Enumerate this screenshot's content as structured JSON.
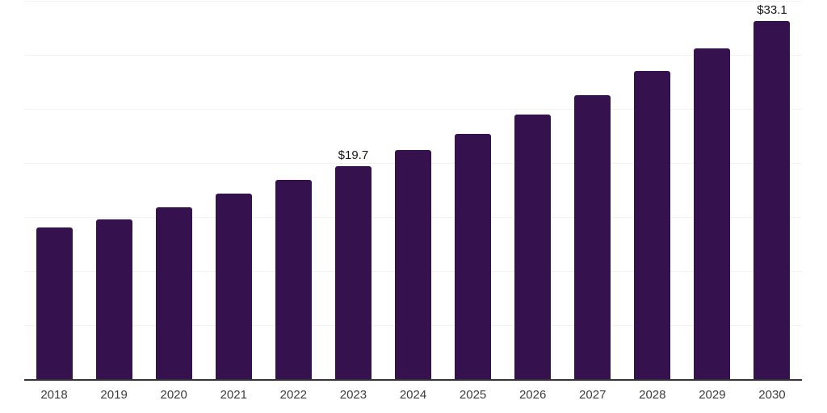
{
  "chart_data": {
    "type": "bar",
    "title": "",
    "xlabel": "",
    "ylabel": "",
    "categories": [
      "2018",
      "2019",
      "2020",
      "2021",
      "2022",
      "2023",
      "2024",
      "2025",
      "2026",
      "2027",
      "2028",
      "2029",
      "2030"
    ],
    "values": [
      14.0,
      14.8,
      15.9,
      17.2,
      18.4,
      19.7,
      21.2,
      22.7,
      24.5,
      26.3,
      28.5,
      30.6,
      33.1
    ],
    "data_labels": [
      "",
      "",
      "",
      "",
      "",
      "$19.7",
      "",
      "",
      "",
      "",
      "",
      "",
      "$33.1"
    ],
    "ylim": [
      0,
      35
    ],
    "grid_step": 5,
    "grid": "horizontal",
    "legend": "none",
    "colors": {
      "bar": "#35124E",
      "gridline": "#F3F3F3",
      "axis_line": "#333333",
      "tick_label": "#3C3C3C",
      "data_label": "#141414",
      "background": "#FFFFFF"
    }
  }
}
